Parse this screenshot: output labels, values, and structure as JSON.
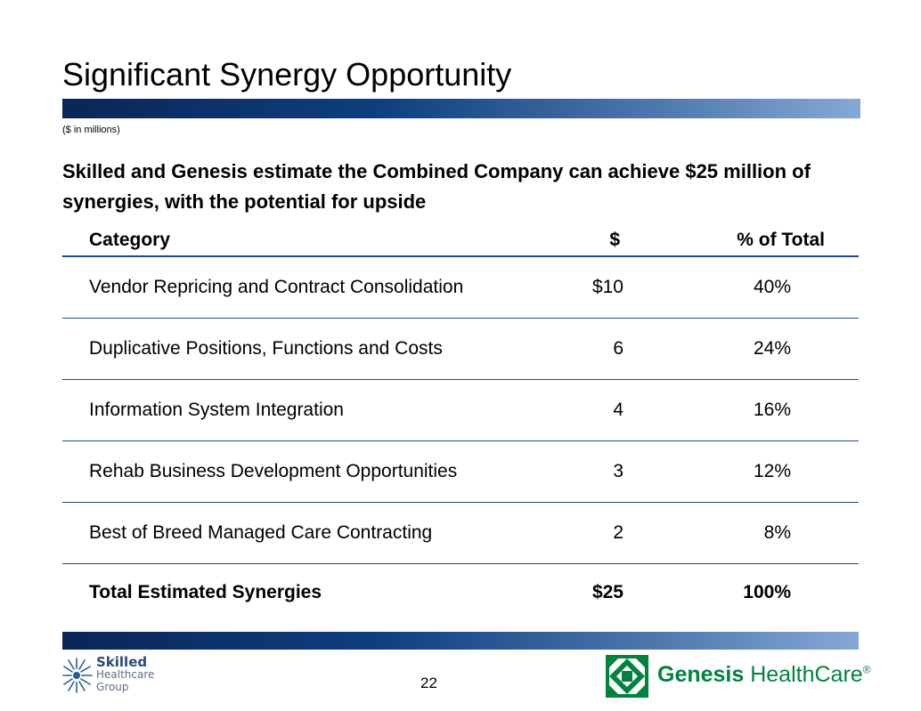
{
  "slide": {
    "title": "Significant Synergy Opportunity",
    "units": "($ in millions)",
    "headline": "Skilled and Genesis estimate the Combined Company can achieve $25 million of synergies, with the potential for upside",
    "page_number": "22"
  },
  "table": {
    "headers": {
      "category": "Category",
      "amount": "$",
      "percent": "% of Total"
    },
    "rows": [
      {
        "category": "Vendor Repricing and Contract Consolidation",
        "amount": "$10",
        "percent": "40%"
      },
      {
        "category": "Duplicative Positions, Functions and Costs",
        "amount": "6",
        "percent": "24%"
      },
      {
        "category": "Information System Integration",
        "amount": "4",
        "percent": "16%"
      },
      {
        "category": "Rehab Business Development Opportunities",
        "amount": "3",
        "percent": "12%"
      },
      {
        "category": "Best of Breed Managed Care Contracting",
        "amount": "2",
        "percent": "8%"
      }
    ],
    "total": {
      "category": "Total Estimated Synergies",
      "amount": "$25",
      "percent": "100%"
    }
  },
  "logos": {
    "left": {
      "line1": "Skilled",
      "line2": "Healthcare",
      "line3": "Group"
    },
    "right": {
      "bold": "Genesis",
      "regular": " HealthCare",
      "mark": "®"
    }
  },
  "colors": {
    "accent": "#1e4a86",
    "genesis_green": "#00833e"
  }
}
